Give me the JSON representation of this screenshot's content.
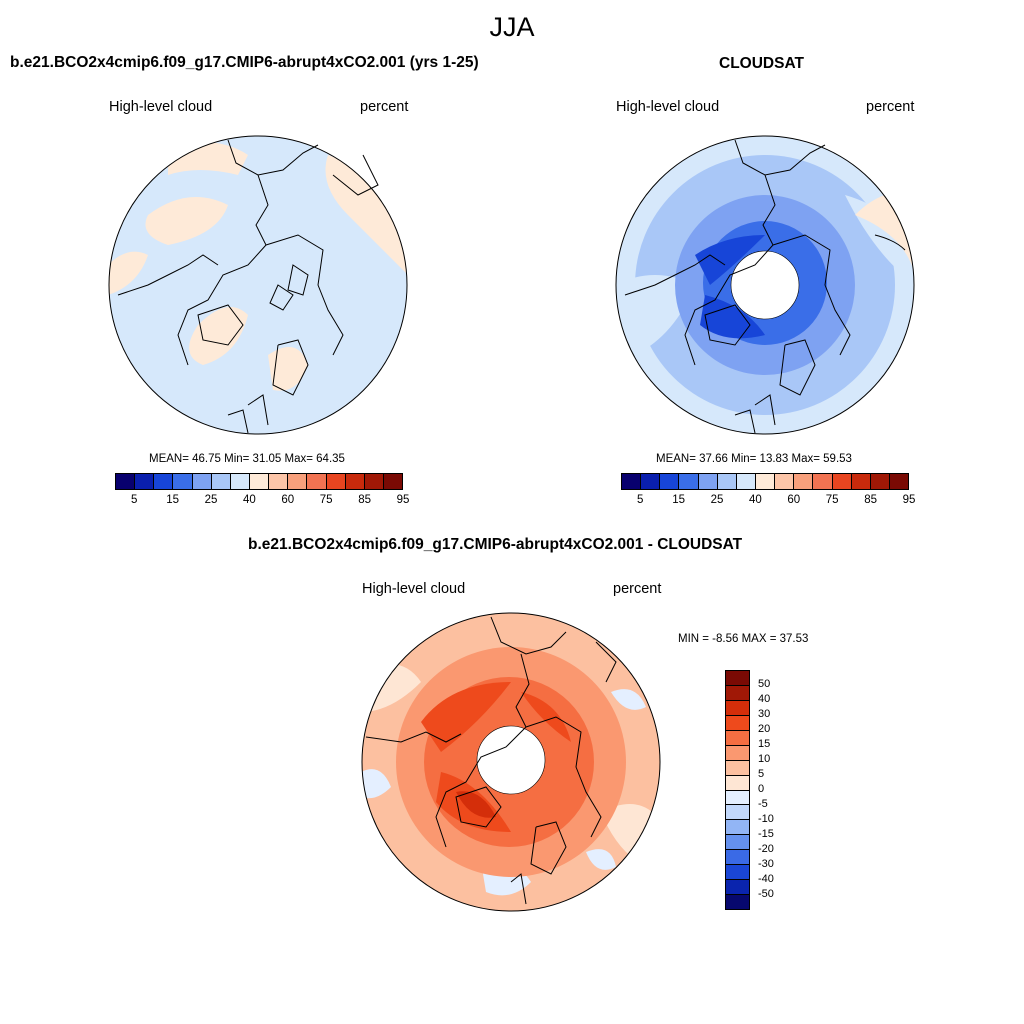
{
  "season": "JJA",
  "panels": [
    {
      "title": "b.e21.BCO2x4cmip6.f09_g17.CMIP6-abrupt4xCO2.001 (yrs 1-25)",
      "variable": "High-level cloud",
      "units": "percent",
      "stats": "MEAN=  46.75  Min=  31.05  Max=  64.35"
    },
    {
      "title": "CLOUDSAT",
      "variable": "High-level cloud",
      "units": "percent",
      "stats": "MEAN=  37.66  Min=  13.83  Max=  59.53"
    },
    {
      "title": "b.e21.BCO2x4cmip6.f09_g17.CMIP6-abrupt4xCO2.001 - CLOUDSAT",
      "variable": "High-level cloud",
      "units": "percent",
      "stats": "MIN =  -8.56 MAX =  37.53"
    }
  ],
  "colorbar_main": {
    "ticks": [
      "5",
      "15",
      "25",
      "40",
      "60",
      "75",
      "85",
      "95"
    ],
    "colors": [
      "#08006e",
      "#0a1fae",
      "#1745d8",
      "#3a6ee8",
      "#7ea2f2",
      "#a9c7f7",
      "#d6e8fb",
      "#feead8",
      "#fcc5a8",
      "#f8a07c",
      "#f27352",
      "#e84520",
      "#c82a0c",
      "#a01806",
      "#7a0a04"
    ]
  },
  "colorbar_diff": {
    "ticks": [
      "50",
      "40",
      "30",
      "20",
      "15",
      "10",
      "5",
      "0",
      "-5",
      "-10",
      "-15",
      "-20",
      "-30",
      "-40",
      "-50"
    ],
    "colors": [
      "#7a0a04",
      "#a01806",
      "#d42e0a",
      "#ee4a1c",
      "#f56e42",
      "#fa9870",
      "#fcc0a0",
      "#fee6d4",
      "#e4efff",
      "#c2d8fb",
      "#92b5f5",
      "#6591ee",
      "#3a6ae6",
      "#1a46d6",
      "#0a24ae",
      "#07086e"
    ]
  }
}
